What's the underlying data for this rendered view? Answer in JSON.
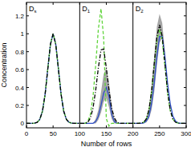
{
  "chart_data": {
    "type": "line",
    "x_label": "Number of rows",
    "y_label": "Concentration",
    "annotations": [
      "Ds",
      "D1",
      "D2"
    ],
    "dividers": [
      100,
      200
    ],
    "xlim": [
      0,
      300
    ],
    "xticks": [
      0,
      50,
      100,
      150,
      200,
      250,
      300
    ],
    "ylim": [
      -0.05,
      1.35
    ],
    "yticks": [
      0,
      0.2,
      0.4,
      0.6,
      0.8,
      1,
      1.2
    ],
    "grid": false,
    "x": [
      0,
      5,
      10,
      15,
      20,
      25,
      30,
      35,
      40,
      45,
      50,
      55,
      60,
      65,
      70,
      75,
      80,
      85,
      90,
      95,
      100,
      105,
      110,
      115,
      120,
      125,
      130,
      135,
      140,
      145,
      150,
      155,
      160,
      165,
      170,
      175,
      180,
      185,
      190,
      195,
      200,
      205,
      210,
      215,
      220,
      225,
      230,
      235,
      240,
      245,
      250,
      255,
      260,
      265,
      270,
      275,
      280,
      285,
      290,
      295,
      300
    ],
    "series": [
      {
        "type": "band",
        "color": "#a6a6a6",
        "values": [
          0,
          0,
          0,
          0.002,
          0.011,
          0.044,
          0.135,
          0.325,
          0.607,
          0.882,
          1,
          0.882,
          0.607,
          0.325,
          0.135,
          0.044,
          0.011,
          0.002,
          0,
          0,
          0,
          0,
          0,
          0,
          0,
          0,
          0.05,
          0.15,
          0.35,
          0.55,
          0.62,
          0.45,
          0.2,
          0.06,
          0.01,
          0,
          0,
          0,
          0,
          0,
          0,
          0,
          0,
          0,
          0.01,
          0.06,
          0.18,
          0.42,
          0.75,
          1.08,
          1.22,
          1.12,
          0.8,
          0.45,
          0.2,
          0.07,
          0.02,
          0,
          0,
          0,
          0
        ],
        "lower": [
          0,
          0,
          0,
          0.002,
          0.011,
          0.044,
          0.135,
          0.325,
          0.607,
          0.882,
          1,
          0.882,
          0.607,
          0.325,
          0.135,
          0.044,
          0.011,
          0.002,
          0,
          0,
          0,
          0,
          0,
          0,
          0,
          0,
          0,
          0.04,
          0.12,
          0.24,
          0.28,
          0.18,
          0.05,
          0,
          0,
          0,
          0,
          0,
          0,
          0,
          0,
          0,
          0,
          0,
          0,
          0.01,
          0.05,
          0.15,
          0.35,
          0.65,
          0.9,
          0.95,
          0.72,
          0.42,
          0.2,
          0.07,
          0.02,
          0,
          0,
          0,
          0
        ]
      },
      {
        "type": "line",
        "color": "#3050c8",
        "line_style": "solid",
        "values": [
          0,
          0,
          0,
          0.002,
          0.011,
          0.044,
          0.135,
          0.325,
          0.607,
          0.882,
          1,
          0.882,
          0.607,
          0.325,
          0.135,
          0.044,
          0.011,
          0.002,
          0,
          0,
          0,
          0,
          0,
          0,
          0,
          0,
          0.02,
          0.08,
          0.2,
          0.34,
          0.4,
          0.3,
          0.1,
          0.02,
          0,
          0,
          0,
          0,
          0,
          0,
          0,
          0,
          0,
          0,
          0.005,
          0.025,
          0.08,
          0.22,
          0.45,
          0.75,
          0.97,
          0.97,
          0.75,
          0.45,
          0.22,
          0.08,
          0.025,
          0.005,
          0,
          0,
          0
        ]
      },
      {
        "type": "line",
        "color": "#5fd43a",
        "line_style": "dashed",
        "values": [
          0,
          0,
          0,
          0.002,
          0.011,
          0.044,
          0.135,
          0.325,
          0.607,
          0.882,
          1,
          0.882,
          0.607,
          0.325,
          0.135,
          0.044,
          0.011,
          0.002,
          0,
          0,
          0,
          0,
          0,
          0.02,
          0.1,
          0.3,
          0.65,
          1.05,
          1.28,
          0.95,
          0.05,
          -0.03,
          0,
          0,
          0,
          0,
          0,
          0,
          0,
          0,
          0,
          0,
          0,
          0.002,
          0.012,
          0.046,
          0.142,
          0.341,
          0.637,
          0.926,
          1.05,
          0.926,
          0.637,
          0.341,
          0.142,
          0.046,
          0.012,
          0.002,
          0,
          0,
          0
        ]
      },
      {
        "type": "line",
        "color": "#000000",
        "line_style": "dashdot",
        "values": [
          0,
          0,
          0,
          0.002,
          0.011,
          0.044,
          0.135,
          0.325,
          0.607,
          0.882,
          1,
          0.882,
          0.607,
          0.325,
          0.135,
          0.044,
          0.011,
          0.002,
          0,
          0,
          0,
          0,
          0,
          0.01,
          0.06,
          0.17,
          0.37,
          0.62,
          0.82,
          0.83,
          0.62,
          0.37,
          0.17,
          0.06,
          0.01,
          0,
          0,
          0,
          0,
          0,
          0,
          0,
          0,
          0.002,
          0.012,
          0.048,
          0.149,
          0.358,
          0.668,
          0.97,
          1.1,
          0.97,
          0.668,
          0.358,
          0.149,
          0.048,
          0.012,
          0.002,
          0,
          0,
          0
        ]
      }
    ]
  }
}
